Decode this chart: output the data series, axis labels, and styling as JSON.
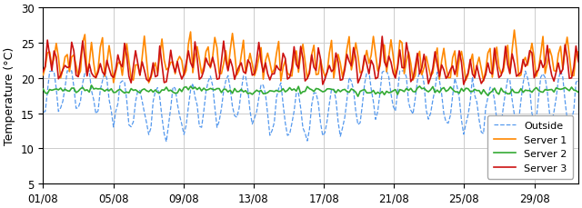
{
  "ylabel": "Temperature (°C)",
  "ylim": [
    5,
    30
  ],
  "yticks": [
    5,
    10,
    15,
    20,
    25,
    30
  ],
  "n_days": 31,
  "samples_per_day": 8,
  "outside_color": "#5599ee",
  "server1_color": "#ff8800",
  "server2_color": "#33aa33",
  "server3_color": "#cc1111",
  "legend_labels": [
    "Outside",
    "Server 1",
    "Server 2",
    "Server 3"
  ],
  "xtick_positions": [
    0,
    4,
    8,
    12,
    16,
    20,
    24,
    28
  ],
  "xtick_labels": [
    "01/08",
    "05/08",
    "09/08",
    "13/08",
    "17/08",
    "21/08",
    "25/08",
    "29/08"
  ],
  "grid_color": "#cccccc",
  "lw_outside": 0.9,
  "lw_server1": 1.2,
  "lw_server2": 1.2,
  "lw_server3": 1.2
}
